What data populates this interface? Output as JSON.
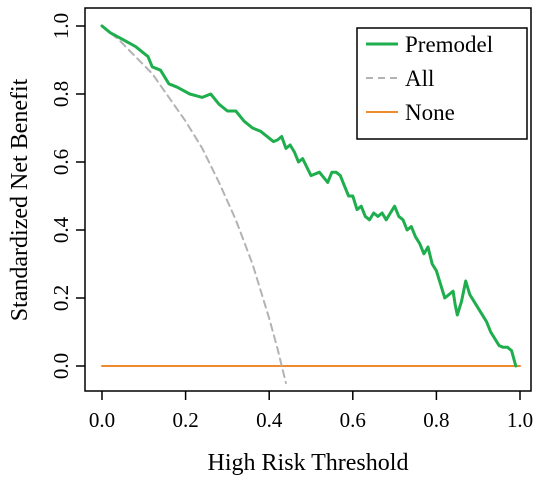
{
  "chart_data": {
    "type": "line",
    "title": "",
    "xlabel": "High Risk Threshold",
    "ylabel": "Standardized Net Benefit",
    "xlim": [
      0,
      1
    ],
    "ylim": [
      -0.05,
      1
    ],
    "xticks": [
      "0.0",
      "0.2",
      "0.4",
      "0.6",
      "0.8",
      "1.0"
    ],
    "yticks": [
      "0.0",
      "0.2",
      "0.4",
      "0.6",
      "0.8",
      "1.0"
    ],
    "grid": false,
    "legend_position": "top-right",
    "series": [
      {
        "name": "Premodel",
        "color": "#1fae4e",
        "dash": "solid",
        "x": [
          0.0,
          0.02,
          0.05,
          0.08,
          0.11,
          0.12,
          0.14,
          0.16,
          0.18,
          0.21,
          0.24,
          0.26,
          0.28,
          0.3,
          0.32,
          0.34,
          0.36,
          0.38,
          0.4,
          0.41,
          0.42,
          0.43,
          0.44,
          0.45,
          0.46,
          0.47,
          0.48,
          0.5,
          0.52,
          0.54,
          0.55,
          0.56,
          0.57,
          0.58,
          0.59,
          0.6,
          0.61,
          0.62,
          0.63,
          0.64,
          0.65,
          0.66,
          0.67,
          0.68,
          0.69,
          0.7,
          0.71,
          0.72,
          0.73,
          0.74,
          0.75,
          0.76,
          0.77,
          0.78,
          0.79,
          0.8,
          0.81,
          0.82,
          0.83,
          0.84,
          0.845,
          0.85,
          0.86,
          0.87,
          0.88,
          0.9,
          0.92,
          0.93,
          0.95,
          0.96,
          0.97,
          0.98,
          0.99
        ],
        "y": [
          1.0,
          0.98,
          0.96,
          0.94,
          0.91,
          0.88,
          0.87,
          0.83,
          0.82,
          0.8,
          0.79,
          0.8,
          0.77,
          0.75,
          0.75,
          0.72,
          0.7,
          0.69,
          0.67,
          0.66,
          0.665,
          0.675,
          0.64,
          0.65,
          0.63,
          0.6,
          0.61,
          0.56,
          0.57,
          0.54,
          0.57,
          0.57,
          0.56,
          0.53,
          0.5,
          0.5,
          0.46,
          0.47,
          0.44,
          0.43,
          0.45,
          0.44,
          0.45,
          0.43,
          0.45,
          0.47,
          0.44,
          0.43,
          0.4,
          0.41,
          0.38,
          0.36,
          0.33,
          0.35,
          0.3,
          0.28,
          0.24,
          0.2,
          0.21,
          0.22,
          0.18,
          0.15,
          0.19,
          0.25,
          0.21,
          0.17,
          0.13,
          0.1,
          0.06,
          0.055,
          0.055,
          0.045,
          0.0
        ]
      },
      {
        "name": "All",
        "color": "#b3b3b3",
        "dash": "dashed",
        "x": [
          0.0,
          0.04,
          0.08,
          0.12,
          0.16,
          0.2,
          0.24,
          0.28,
          0.32,
          0.36,
          0.4,
          0.42,
          0.44
        ],
        "y": [
          1.0,
          0.96,
          0.91,
          0.86,
          0.79,
          0.72,
          0.64,
          0.54,
          0.43,
          0.3,
          0.14,
          0.05,
          -0.05
        ]
      },
      {
        "name": "None",
        "color": "#ef8a2e",
        "dash": "solid",
        "x": [
          0.0,
          1.0
        ],
        "y": [
          0.0,
          0.0
        ]
      }
    ]
  }
}
